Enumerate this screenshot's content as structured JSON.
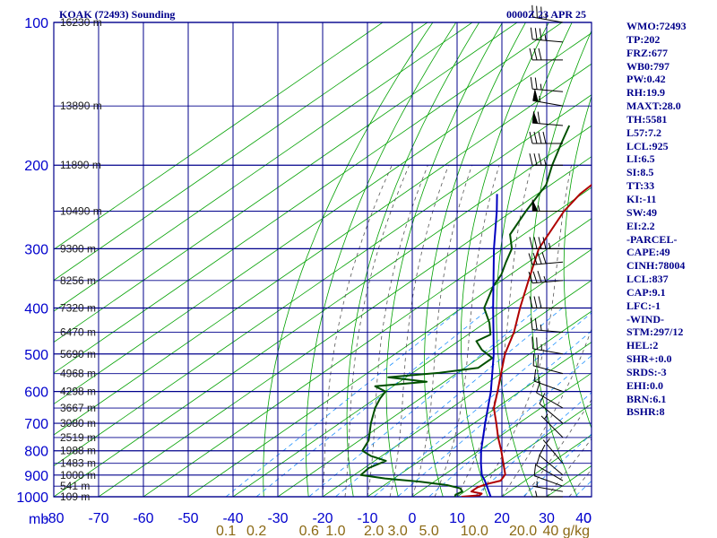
{
  "header": {
    "station": "KOAK (72493) Sounding",
    "datetime": "0000Z 23 APR 25"
  },
  "stats": [
    "WMO:72493",
    "TP:202",
    "FRZ:677",
    "WB0:797",
    "PW:0.42",
    "RH:19.9",
    "MAXT:28.0",
    "TH:5581",
    "L57:7.2",
    "LCL:925",
    "LI:6.5",
    "SI:8.5",
    "TT:33",
    "KI:-11",
    "SW:49",
    "EI:2.2",
    "-PARCEL-",
    "CAPE:49",
    "CINH:78004",
    "LCL:837",
    "CAP:9.1",
    "LFC:-1",
    "-WIND-",
    "STM:297/12",
    "HEL:2",
    "SHR+:0.0",
    "SRDS:-3",
    "EHI:0.0",
    "BRN:6.1",
    "BSHR:8"
  ],
  "colors": {
    "frame": "#00008b",
    "grid": "#00008b",
    "isotherms": "#00a000",
    "dry_adiabats": "#00a000",
    "moist_adiabats": "#555555",
    "mixing_ratio": "#1e90ff",
    "temperature": "#b00000",
    "dewpoint": "#005000",
    "parcel": "#0000c0",
    "wind_barbs": "#000000"
  },
  "chart_data": {
    "type": "line",
    "chart_kind": "skew-t log-p sounding",
    "y_scale": "log",
    "ylim": [
      1000,
      100
    ],
    "xlim": [
      -80,
      40
    ],
    "y_unit_label": "mb",
    "x_unit_label": "0",
    "pressure_ticks": [
      100,
      200,
      300,
      400,
      500,
      600,
      700,
      800,
      900,
      1000
    ],
    "temperature_ticks": [
      -80,
      -70,
      -60,
      -50,
      -40,
      -30,
      -20,
      -10,
      0,
      10,
      20,
      30,
      40
    ],
    "temperature_tick_labels": [
      "-80",
      "-70",
      "-60",
      "-50",
      "-40",
      "-30",
      "-20",
      "-10",
      "0",
      "10",
      "20",
      "30",
      "40"
    ],
    "mixing_ratio_labels": [
      {
        "value": 0.1,
        "label": "0.1"
      },
      {
        "value": 0.2,
        "label": "0.2"
      },
      {
        "value": 0.6,
        "label": "0.6"
      },
      {
        "value": 1.0,
        "label": "1.0"
      },
      {
        "value": 2.0,
        "label": "2.0"
      },
      {
        "value": 3.0,
        "label": "3.0"
      },
      {
        "value": 5.0,
        "label": "5.0"
      },
      {
        "value": 10.0,
        "label": "10.0"
      },
      {
        "value": 20.0,
        "label": "20.0"
      },
      {
        "value": 40.0,
        "label": "40 g/kg"
      }
    ],
    "height_labels": [
      {
        "p": 100,
        "label": "16230 m"
      },
      {
        "p": 150,
        "label": "13890 m"
      },
      {
        "p": 200,
        "label": "11890 m"
      },
      {
        "p": 250,
        "label": "10490 m"
      },
      {
        "p": 300,
        "label": "9300 m"
      },
      {
        "p": 350,
        "label": "8256 m"
      },
      {
        "p": 400,
        "label": "7320 m"
      },
      {
        "p": 450,
        "label": "6470 m"
      },
      {
        "p": 500,
        "label": "5690 m"
      },
      {
        "p": 550,
        "label": "4968 m"
      },
      {
        "p": 600,
        "label": "4298 m"
      },
      {
        "p": 650,
        "label": "3667 m"
      },
      {
        "p": 700,
        "label": "3080 m"
      },
      {
        "p": 750,
        "label": "2519 m"
      },
      {
        "p": 800,
        "label": "1988 m"
      },
      {
        "p": 850,
        "label": "1483 m"
      },
      {
        "p": 900,
        "label": "1000 m"
      },
      {
        "p": 950,
        "label": "541 m"
      },
      {
        "p": 1000,
        "label": "109 m"
      }
    ],
    "series": [
      {
        "values": [
          {
            "p": 1000,
            "t": 11.0
          },
          {
            "p": 993,
            "t": 14.5
          },
          {
            "p": 985,
            "t": 14.5
          },
          {
            "p": 975,
            "t": 11.5
          },
          {
            "p": 955,
            "t": 11.5
          },
          {
            "p": 940,
            "t": 12.5
          },
          {
            "p": 925,
            "t": 14.5
          },
          {
            "p": 910,
            "t": 14.0
          },
          {
            "p": 897,
            "t": 13.5
          },
          {
            "p": 850,
            "t": 9.5
          },
          {
            "p": 800,
            "t": 5.0
          },
          {
            "p": 750,
            "t": 0.0
          },
          {
            "p": 700,
            "t": -5.0
          },
          {
            "p": 650,
            "t": -10.5
          },
          {
            "p": 600,
            "t": -15.0
          },
          {
            "p": 560,
            "t": -19.0
          },
          {
            "p": 500,
            "t": -25.5
          },
          {
            "p": 450,
            "t": -30.5
          },
          {
            "p": 400,
            "t": -37.0
          },
          {
            "p": 350,
            "t": -44.0
          },
          {
            "p": 300,
            "t": -52.0
          },
          {
            "p": 250,
            "t": -58.5
          },
          {
            "p": 230,
            "t": -60.5
          },
          {
            "p": 202,
            "t": -61.5
          },
          {
            "p": 190,
            "t": -61.0
          },
          {
            "p": 150,
            "t": -56.5
          },
          {
            "p": 140,
            "t": -56.5
          },
          {
            "p": 100,
            "t": -57.0
          }
        ]
      },
      {
        "values": [
          {
            "p": 1000,
            "t": 9.5
          },
          {
            "p": 990,
            "t": 9.0
          },
          {
            "p": 975,
            "t": 9.5
          },
          {
            "p": 960,
            "t": 8.0
          },
          {
            "p": 945,
            "t": 4.0
          },
          {
            "p": 930,
            "t": -3.0
          },
          {
            "p": 915,
            "t": -12.0
          },
          {
            "p": 900,
            "t": -18.5
          },
          {
            "p": 870,
            "t": -19.0
          },
          {
            "p": 840,
            "t": -17.5
          },
          {
            "p": 820,
            "t": -22.5
          },
          {
            "p": 800,
            "t": -26.0
          },
          {
            "p": 760,
            "t": -28.0
          },
          {
            "p": 700,
            "t": -33.0
          },
          {
            "p": 650,
            "t": -37.0
          },
          {
            "p": 620,
            "t": -39.0
          },
          {
            "p": 600,
            "t": -40.0
          },
          {
            "p": 585,
            "t": -44.0
          },
          {
            "p": 572,
            "t": -34.0
          },
          {
            "p": 560,
            "t": -44.0
          },
          {
            "p": 548,
            "t": -34.0
          },
          {
            "p": 535,
            "t": -27.0
          },
          {
            "p": 510,
            "t": -27.0
          },
          {
            "p": 490,
            "t": -32.0
          },
          {
            "p": 470,
            "t": -36.0
          },
          {
            "p": 455,
            "t": -35.0
          },
          {
            "p": 430,
            "t": -39.0
          },
          {
            "p": 400,
            "t": -45.0
          },
          {
            "p": 360,
            "t": -50.0
          },
          {
            "p": 340,
            "t": -52.0
          },
          {
            "p": 320,
            "t": -55.0
          },
          {
            "p": 300,
            "t": -58.0
          },
          {
            "p": 280,
            "t": -63.0
          },
          {
            "p": 250,
            "t": -67.0
          },
          {
            "p": 220,
            "t": -71.0
          },
          {
            "p": 200,
            "t": -76.0
          },
          {
            "p": 180,
            "t": -81.0
          },
          {
            "p": 165,
            "t": -85.0
          }
        ]
      },
      {
        "values": [
          {
            "p": 1000,
            "t": 17.5
          },
          {
            "p": 925,
            "t": 11.0
          },
          {
            "p": 900,
            "t": 8.5
          },
          {
            "p": 850,
            "t": 4.5
          },
          {
            "p": 800,
            "t": 0.5
          },
          {
            "p": 700,
            "t": -7.5
          },
          {
            "p": 600,
            "t": -16.5
          },
          {
            "p": 500,
            "t": -28.0
          },
          {
            "p": 400,
            "t": -43.0
          },
          {
            "p": 300,
            "t": -62.0
          },
          {
            "p": 250,
            "t": -73.5
          },
          {
            "p": 230,
            "t": -79.0
          }
        ]
      }
    ],
    "wind_barbs": [
      {
        "p": 100,
        "dir": 280,
        "spd": 35
      },
      {
        "p": 110,
        "dir": 275,
        "spd": 35
      },
      {
        "p": 120,
        "dir": 270,
        "spd": 30
      },
      {
        "p": 140,
        "dir": 275,
        "spd": 25
      },
      {
        "p": 150,
        "dir": 280,
        "spd": 55
      },
      {
        "p": 165,
        "dir": 275,
        "spd": 60
      },
      {
        "p": 180,
        "dir": 270,
        "spd": 40
      },
      {
        "p": 200,
        "dir": 270,
        "spd": 35
      },
      {
        "p": 250,
        "dir": 270,
        "spd": 55
      },
      {
        "p": 300,
        "dir": 270,
        "spd": 45
      },
      {
        "p": 320,
        "dir": 265,
        "spd": 40
      },
      {
        "p": 350,
        "dir": 265,
        "spd": 35
      },
      {
        "p": 400,
        "dir": 270,
        "spd": 30
      },
      {
        "p": 450,
        "dir": 275,
        "spd": 25
      },
      {
        "p": 500,
        "dir": 280,
        "spd": 25
      },
      {
        "p": 550,
        "dir": 285,
        "spd": 20
      },
      {
        "p": 600,
        "dir": 290,
        "spd": 15
      },
      {
        "p": 650,
        "dir": 300,
        "spd": 10
      },
      {
        "p": 700,
        "dir": 310,
        "spd": 10
      },
      {
        "p": 750,
        "dir": 315,
        "spd": 5
      },
      {
        "p": 850,
        "dir": 320,
        "spd": 5
      },
      {
        "p": 900,
        "dir": 310,
        "spd": 10
      },
      {
        "p": 925,
        "dir": 300,
        "spd": 10
      },
      {
        "p": 950,
        "dir": 290,
        "spd": 10
      },
      {
        "p": 975,
        "dir": 280,
        "spd": 5
      },
      {
        "p": 1000,
        "dir": 270,
        "spd": 5
      }
    ]
  }
}
